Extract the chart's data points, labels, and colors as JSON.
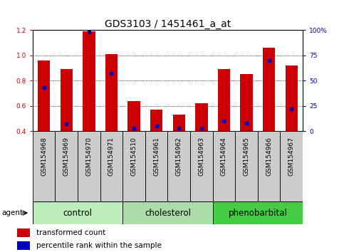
{
  "title": "GDS3103 / 1451461_a_at",
  "samples": [
    "GSM154968",
    "GSM154969",
    "GSM154970",
    "GSM154971",
    "GSM154510",
    "GSM154961",
    "GSM154962",
    "GSM154963",
    "GSM154964",
    "GSM154965",
    "GSM154966",
    "GSM154967"
  ],
  "red_values": [
    0.96,
    0.89,
    1.19,
    1.01,
    0.64,
    0.57,
    0.53,
    0.62,
    0.89,
    0.85,
    1.06,
    0.92
  ],
  "blue_percentiles": [
    43,
    7,
    98,
    57,
    3,
    5,
    3,
    3,
    10,
    8,
    70,
    22
  ],
  "groups": [
    {
      "label": "control",
      "indices": [
        0,
        1,
        2,
        3
      ],
      "color": "#bbeebb"
    },
    {
      "label": "cholesterol",
      "indices": [
        4,
        5,
        6,
        7
      ],
      "color": "#aaddaa"
    },
    {
      "label": "phenobarbital",
      "indices": [
        8,
        9,
        10,
        11
      ],
      "color": "#44cc44"
    }
  ],
  "ylim_left": [
    0.4,
    1.2
  ],
  "ylim_right": [
    0,
    100
  ],
  "yticks_left": [
    0.4,
    0.6,
    0.8,
    1.0,
    1.2
  ],
  "yticks_right": [
    0,
    25,
    50,
    75,
    100
  ],
  "ytick_labels_right": [
    "0",
    "25",
    "50",
    "75",
    "100%"
  ],
  "bar_color": "#cc0000",
  "dot_color": "#0000bb",
  "cell_bg": "#cccccc",
  "plot_bg": "#ffffff",
  "agent_label": "agent",
  "legend_items": [
    {
      "label": "transformed count",
      "color": "#cc0000",
      "marker": "s"
    },
    {
      "label": "percentile rank within the sample",
      "color": "#0000bb",
      "marker": "s"
    }
  ],
  "title_fontsize": 10,
  "tick_fontsize": 6.5,
  "group_fontsize": 8.5,
  "bar_width": 0.55
}
